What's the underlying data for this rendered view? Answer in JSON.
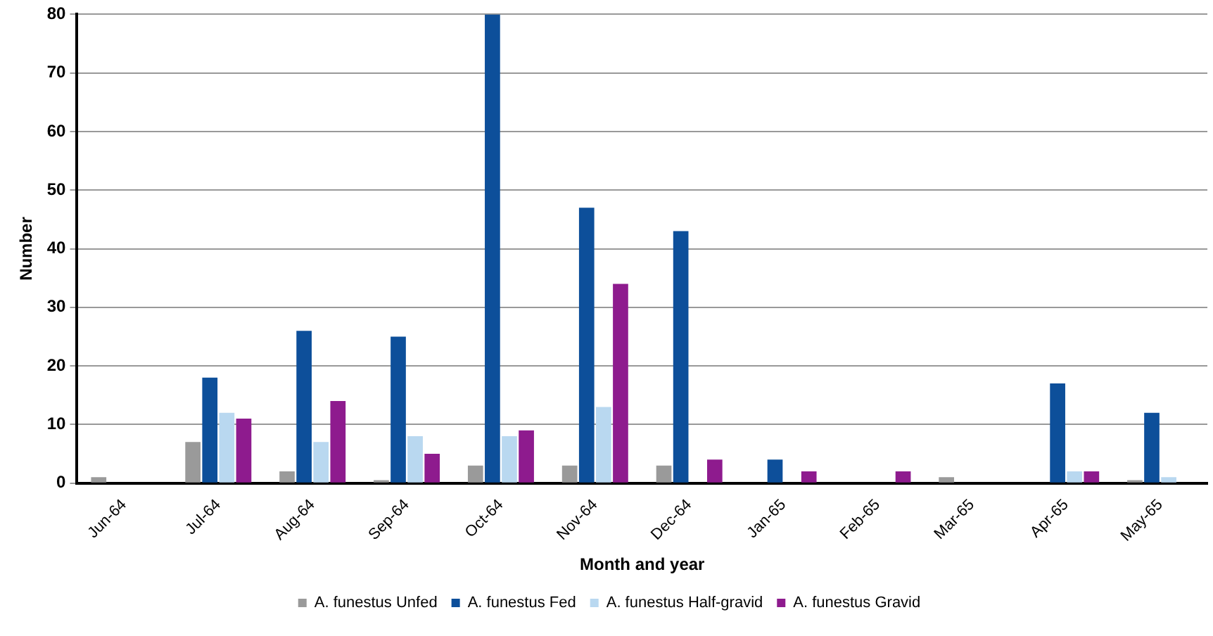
{
  "chart_data": {
    "type": "bar",
    "xlabel": "Month and year",
    "ylabel": "Number",
    "categories": [
      "Jun-64",
      "Jul-64",
      "Aug-64",
      "Sep-64",
      "Oct-64",
      "Nov-64",
      "Dec-64",
      "Jan-65",
      "Feb-65",
      "Mar-65",
      "Apr-65",
      "May-65"
    ],
    "series": [
      {
        "name": "A. funestus Unfed",
        "color": "#9a9a9a",
        "values": [
          1,
          7,
          2,
          0.5,
          3,
          3,
          3,
          0,
          0,
          1,
          0,
          0.5
        ]
      },
      {
        "name": "A. funestus Fed",
        "color": "#0d4f9a",
        "values": [
          0,
          18,
          26,
          25,
          80,
          47,
          43,
          4,
          0,
          0,
          17,
          12
        ]
      },
      {
        "name": "A. funestus Half-gravid",
        "color": "#b9d8f0",
        "values": [
          0,
          12,
          7,
          8,
          8,
          13,
          0,
          0,
          0,
          0,
          2,
          1
        ]
      },
      {
        "name": "A. funestus Gravid",
        "color": "#8e1b8e",
        "values": [
          0,
          11,
          14,
          5,
          9,
          34,
          4,
          2,
          2,
          0,
          2,
          0
        ]
      }
    ],
    "ylim": [
      0,
      80
    ],
    "yticks": [
      0,
      10,
      20,
      30,
      40,
      50,
      60,
      70,
      80
    ],
    "grid": "y",
    "legend": "bottom"
  }
}
